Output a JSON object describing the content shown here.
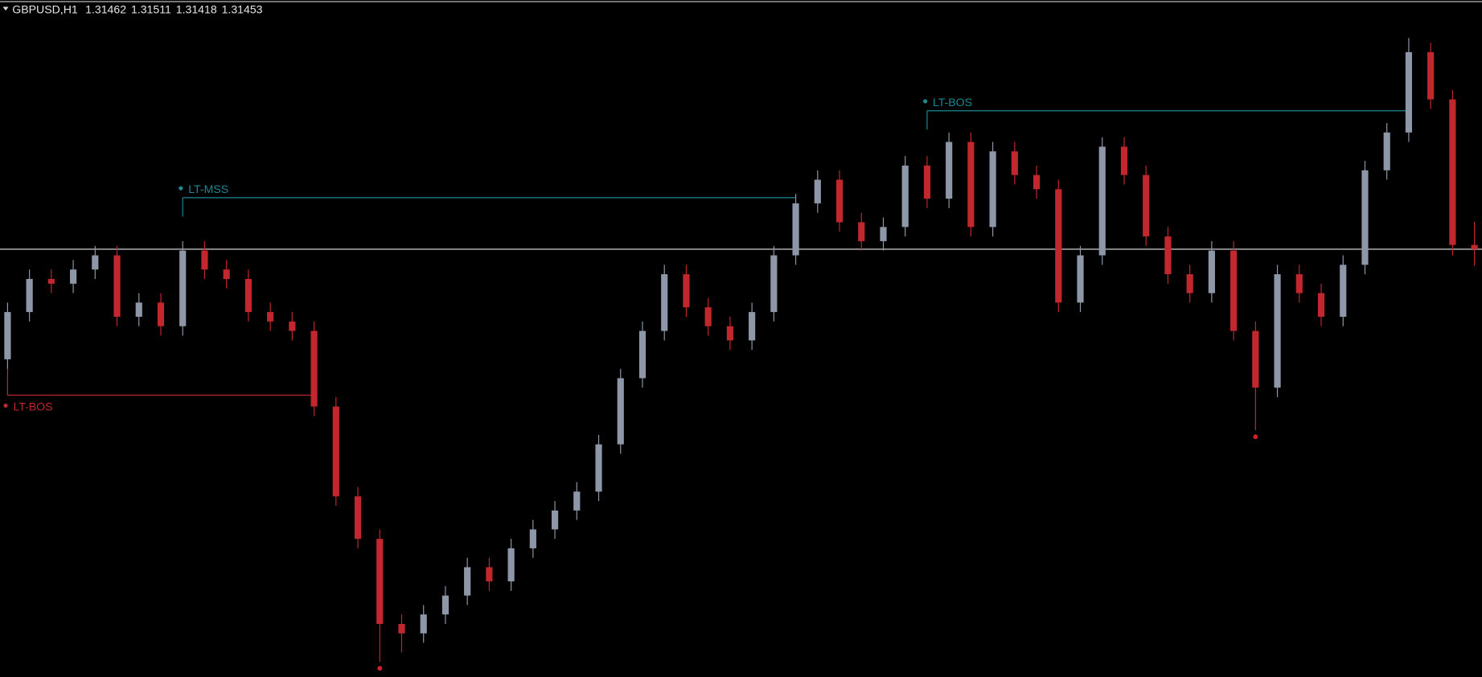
{
  "chart_data": {
    "type": "candlestick",
    "symbol": "GBPUSD,H1",
    "bull_color": "#8e97a8",
    "bear_color": "#c1272d",
    "ylim": [
      1.30548,
      1.3198
    ],
    "open": [
      1.3122,
      1.3132,
      1.3139,
      1.3138,
      1.3141,
      1.3144,
      1.3131,
      1.3134,
      1.3129,
      1.3145,
      1.3141,
      1.3139,
      1.3132,
      1.313,
      1.3128,
      1.3112,
      1.3093,
      1.3084,
      1.3066,
      1.3064,
      1.3068,
      1.3072,
      1.3078,
      1.3075,
      1.3082,
      1.3086,
      1.309,
      1.3094,
      1.3104,
      1.3118,
      1.3128,
      1.314,
      1.3133,
      1.3129,
      1.3126,
      1.3132,
      1.3144,
      1.3155,
      1.316,
      1.3151,
      1.3147,
      1.315,
      1.3163,
      1.3156,
      1.3168,
      1.315,
      1.3166,
      1.3161,
      1.3158,
      1.3134,
      1.3144,
      1.3167,
      1.3161,
      1.3148,
      1.314,
      1.3136,
      1.3145,
      1.3128,
      1.3116,
      1.314,
      1.3136,
      1.3131,
      1.3142,
      1.3162,
      1.317,
      1.3187,
      1.3177,
      1.31462
    ],
    "high": [
      1.3134,
      1.3141,
      1.3141,
      1.3143,
      1.3146,
      1.3146,
      1.3136,
      1.3136,
      1.3147,
      1.3147,
      1.3143,
      1.3141,
      1.3134,
      1.3132,
      1.313,
      1.3114,
      1.3095,
      1.3086,
      1.3068,
      1.307,
      1.3074,
      1.308,
      1.308,
      1.3084,
      1.3088,
      1.3092,
      1.3096,
      1.3106,
      1.312,
      1.313,
      1.3142,
      1.3142,
      1.3135,
      1.3131,
      1.3134,
      1.3146,
      1.3157,
      1.3162,
      1.3162,
      1.3153,
      1.3152,
      1.3165,
      1.3165,
      1.317,
      1.317,
      1.3168,
      1.3168,
      1.3163,
      1.316,
      1.3146,
      1.3169,
      1.3169,
      1.3163,
      1.315,
      1.3142,
      1.3147,
      1.3147,
      1.313,
      1.3142,
      1.3142,
      1.3138,
      1.3144,
      1.3164,
      1.3172,
      1.319,
      1.3189,
      1.3179,
      1.31511
    ],
    "low": [
      1.312,
      1.313,
      1.3136,
      1.3136,
      1.3139,
      1.3129,
      1.3129,
      1.3127,
      1.3127,
      1.3139,
      1.3137,
      1.313,
      1.3128,
      1.3126,
      1.311,
      1.3091,
      1.3082,
      1.3058,
      1.306,
      1.3062,
      1.3066,
      1.307,
      1.3073,
      1.3073,
      1.308,
      1.3084,
      1.3088,
      1.3092,
      1.3102,
      1.3116,
      1.3126,
      1.3131,
      1.3127,
      1.3124,
      1.3124,
      1.313,
      1.3142,
      1.3153,
      1.3149,
      1.3145,
      1.3145,
      1.3148,
      1.3154,
      1.3154,
      1.3148,
      1.3148,
      1.3159,
      1.3156,
      1.3132,
      1.3132,
      1.3142,
      1.3159,
      1.3146,
      1.3138,
      1.3134,
      1.3134,
      1.3126,
      1.3107,
      1.3114,
      1.3134,
      1.3129,
      1.3129,
      1.314,
      1.316,
      1.3168,
      1.3175,
      1.3144,
      1.31418
    ],
    "close": [
      1.3132,
      1.3139,
      1.3138,
      1.3141,
      1.3144,
      1.3131,
      1.3134,
      1.3129,
      1.3145,
      1.3141,
      1.3139,
      1.3132,
      1.313,
      1.3128,
      1.3112,
      1.3093,
      1.3084,
      1.3066,
      1.3064,
      1.3068,
      1.3072,
      1.3078,
      1.3075,
      1.3082,
      1.3086,
      1.309,
      1.3094,
      1.3104,
      1.3118,
      1.3128,
      1.314,
      1.3133,
      1.3129,
      1.3126,
      1.3132,
      1.3144,
      1.3155,
      1.316,
      1.3151,
      1.3147,
      1.315,
      1.3163,
      1.3156,
      1.3168,
      1.315,
      1.3166,
      1.3161,
      1.3158,
      1.3134,
      1.3144,
      1.3167,
      1.3161,
      1.3148,
      1.314,
      1.3136,
      1.3145,
      1.3128,
      1.3116,
      1.314,
      1.3136,
      1.3131,
      1.3142,
      1.3162,
      1.317,
      1.3187,
      1.3177,
      1.31462,
      1.31453
    ],
    "annotations": [
      {
        "label": "LT-MSS",
        "price": 1.31562,
        "from": 8,
        "to": 36,
        "color": "#1a8a92"
      },
      {
        "label": "LT-BOS",
        "price": 1.31746,
        "from": 42,
        "to": 64,
        "color": "#1a8a92"
      },
      {
        "label": "LT-BOS",
        "price": 1.31144,
        "from": 0,
        "to": 14,
        "color": "#c1272d"
      }
    ],
    "swing_markers": [
      17,
      57
    ],
    "marker_color": "#d0202a",
    "price_line_color": "#e8e8e8"
  }
}
